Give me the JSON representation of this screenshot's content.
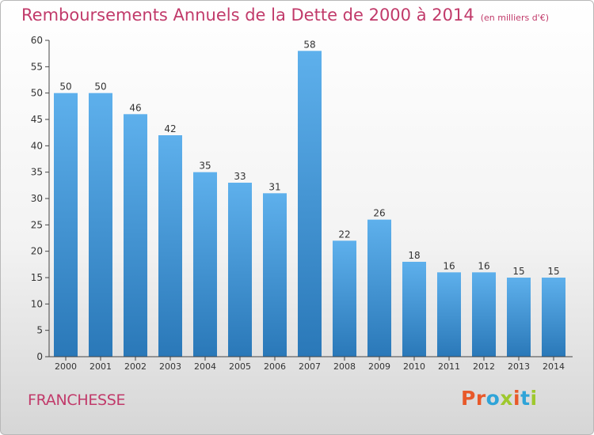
{
  "header": {
    "title": "Remboursements Annuels de la Dette de 2000 à 2014",
    "subtitle": "(en milliers d'€)"
  },
  "footer": {
    "commune": "FRANCHESSE",
    "logo": "Proxiti"
  },
  "colors": {
    "title": "#c13a6a",
    "bar_light": "#5eb0ec",
    "bar_dark": "#2a78b8",
    "logo_letters": [
      "#e8592a",
      "#e8592a",
      "#2fa4d8",
      "#9ec82d",
      "#e8592a",
      "#2fa4d8",
      "#9ec82d"
    ]
  },
  "chart_data": {
    "type": "bar",
    "categories": [
      "2000",
      "2001",
      "2002",
      "2003",
      "2004",
      "2005",
      "2006",
      "2007",
      "2008",
      "2009",
      "2010",
      "2011",
      "2012",
      "2013",
      "2014"
    ],
    "values": [
      50,
      50,
      46,
      42,
      35,
      33,
      31,
      58,
      22,
      26,
      18,
      16,
      16,
      15,
      15
    ],
    "ylim": [
      0,
      60
    ],
    "yticks": [
      0,
      5,
      10,
      15,
      20,
      25,
      30,
      35,
      40,
      45,
      50,
      55,
      60
    ],
    "grid": false,
    "legend": "none"
  }
}
